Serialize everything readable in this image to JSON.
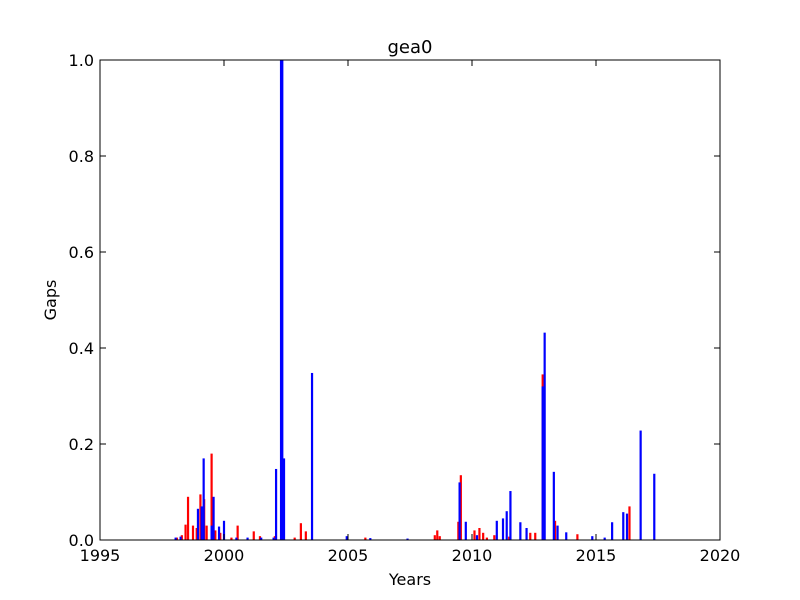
{
  "chart_data": {
    "type": "bar",
    "title": "gea0",
    "xlabel": "Years",
    "ylabel": "Gaps",
    "xlim": [
      1995,
      2020
    ],
    "ylim": [
      0,
      1.0
    ],
    "xticks": [
      "1995",
      "2000",
      "2005",
      "2010",
      "2015",
      "2020"
    ],
    "yticks": [
      "0.0",
      "0.2",
      "0.4",
      "0.6",
      "0.8",
      "1.0"
    ],
    "grid": false,
    "legend": "none",
    "series": [
      {
        "color": "#ff0000",
        "x": [
          1998.1,
          1998.3,
          1998.45,
          1998.55,
          1998.75,
          1998.9,
          1999.05,
          1999.2,
          1999.3,
          1999.5,
          1999.65,
          1999.85,
          2000.3,
          2000.55,
          2001.2,
          2001.45,
          2002.05,
          2002.85,
          2003.1,
          2003.3,
          2005.7,
          2008.5,
          2008.6,
          2008.7,
          2009.45,
          2009.55,
          2010.1,
          2010.3,
          2010.45,
          2010.6,
          2010.9,
          2011.5,
          2012.35,
          2012.55,
          2012.85,
          2013.35,
          2014.25,
          2016.35
        ],
        "values": [
          0.005,
          0.01,
          0.032,
          0.09,
          0.03,
          0.025,
          0.095,
          0.085,
          0.03,
          0.18,
          0.02,
          0.015,
          0.005,
          0.03,
          0.018,
          0.008,
          0.008,
          0.005,
          0.035,
          0.018,
          0.005,
          0.01,
          0.02,
          0.008,
          0.038,
          0.135,
          0.02,
          0.025,
          0.015,
          0.005,
          0.01,
          0.007,
          0.015,
          0.015,
          0.345,
          0.04,
          0.012,
          0.07
        ]
      },
      {
        "color": "#0000ff",
        "x": [
          1998.05,
          1998.25,
          1998.95,
          1999.1,
          1999.18,
          1999.5,
          1999.58,
          1999.8,
          2000.0,
          2000.5,
          2000.95,
          2001.5,
          2002.0,
          2002.1,
          2002.3,
          2002.35,
          2002.42,
          2003.55,
          2004.95,
          2005.9,
          2007.4,
          2009.5,
          2009.75,
          2010.2,
          2011.0,
          2011.25,
          2011.4,
          2011.55,
          2011.95,
          2012.2,
          2012.85,
          2012.93,
          2013.3,
          2013.45,
          2013.8,
          2014.85,
          2015.35,
          2015.65,
          2016.1,
          2016.25,
          2016.8,
          2017.35
        ],
        "values": [
          0.005,
          0.007,
          0.065,
          0.07,
          0.17,
          0.03,
          0.09,
          0.028,
          0.04,
          0.005,
          0.005,
          0.005,
          0.005,
          0.148,
          1.0,
          1.0,
          0.17,
          0.348,
          0.008,
          0.004,
          0.003,
          0.12,
          0.038,
          0.01,
          0.04,
          0.045,
          0.06,
          0.102,
          0.037,
          0.025,
          0.32,
          0.432,
          0.142,
          0.03,
          0.016,
          0.008,
          0.005,
          0.037,
          0.058,
          0.055,
          0.228,
          0.138
        ]
      }
    ]
  }
}
